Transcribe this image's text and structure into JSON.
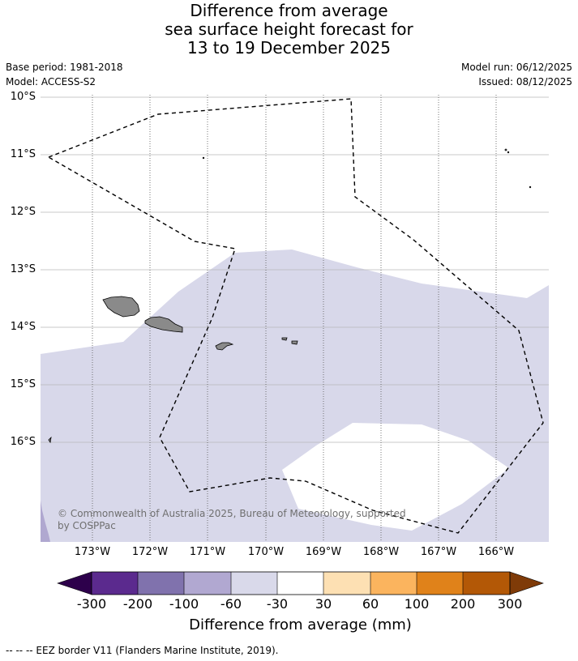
{
  "title": {
    "line1": "Difference from average",
    "line2": "sea surface height forecast for",
    "line3": "13 to 19 December 2025"
  },
  "meta": {
    "base_period": "Base period: 1981-2018",
    "model": "Model: ACCESS-S2",
    "model_run": "Model run: 06/12/2025",
    "issued": "Issued: 08/12/2025"
  },
  "map": {
    "lat_labels": [
      "10°S",
      "11°S",
      "12°S",
      "13°S",
      "14°S",
      "15°S",
      "16°S"
    ],
    "lon_labels": [
      "173°W",
      "172°W",
      "171°W",
      "170°W",
      "169°W",
      "168°W",
      "167°W",
      "166°W"
    ],
    "credit_line1": "© Commonwealth of Australia 2025, Bureau of Meteorology, supported",
    "credit_line2": "by COSPPac",
    "colors": {
      "ocean_background": "#ffffff",
      "minus60_to_minus30": "#d8d8ea",
      "minus100_to_minus60": "#b0a8d0",
      "land": "#8a8a8a",
      "eez_line": "#000000"
    }
  },
  "colorbar": {
    "labels": [
      "-300",
      "-200",
      "-100",
      "-60",
      "-30",
      "30",
      "60",
      "100",
      "200",
      "300"
    ],
    "colors": [
      "#2d004b",
      "#5b2a8e",
      "#8072ad",
      "#b1a8d1",
      "#d9d9ea",
      "#ffffff",
      "#fde0b3",
      "#fbb45e",
      "#e0821a",
      "#b35806",
      "#7f3b08"
    ],
    "title": "Difference from average (mm)"
  },
  "footer": "--  --  -- EEZ border V11 (Flanders Marine Institute, 2019)."
}
